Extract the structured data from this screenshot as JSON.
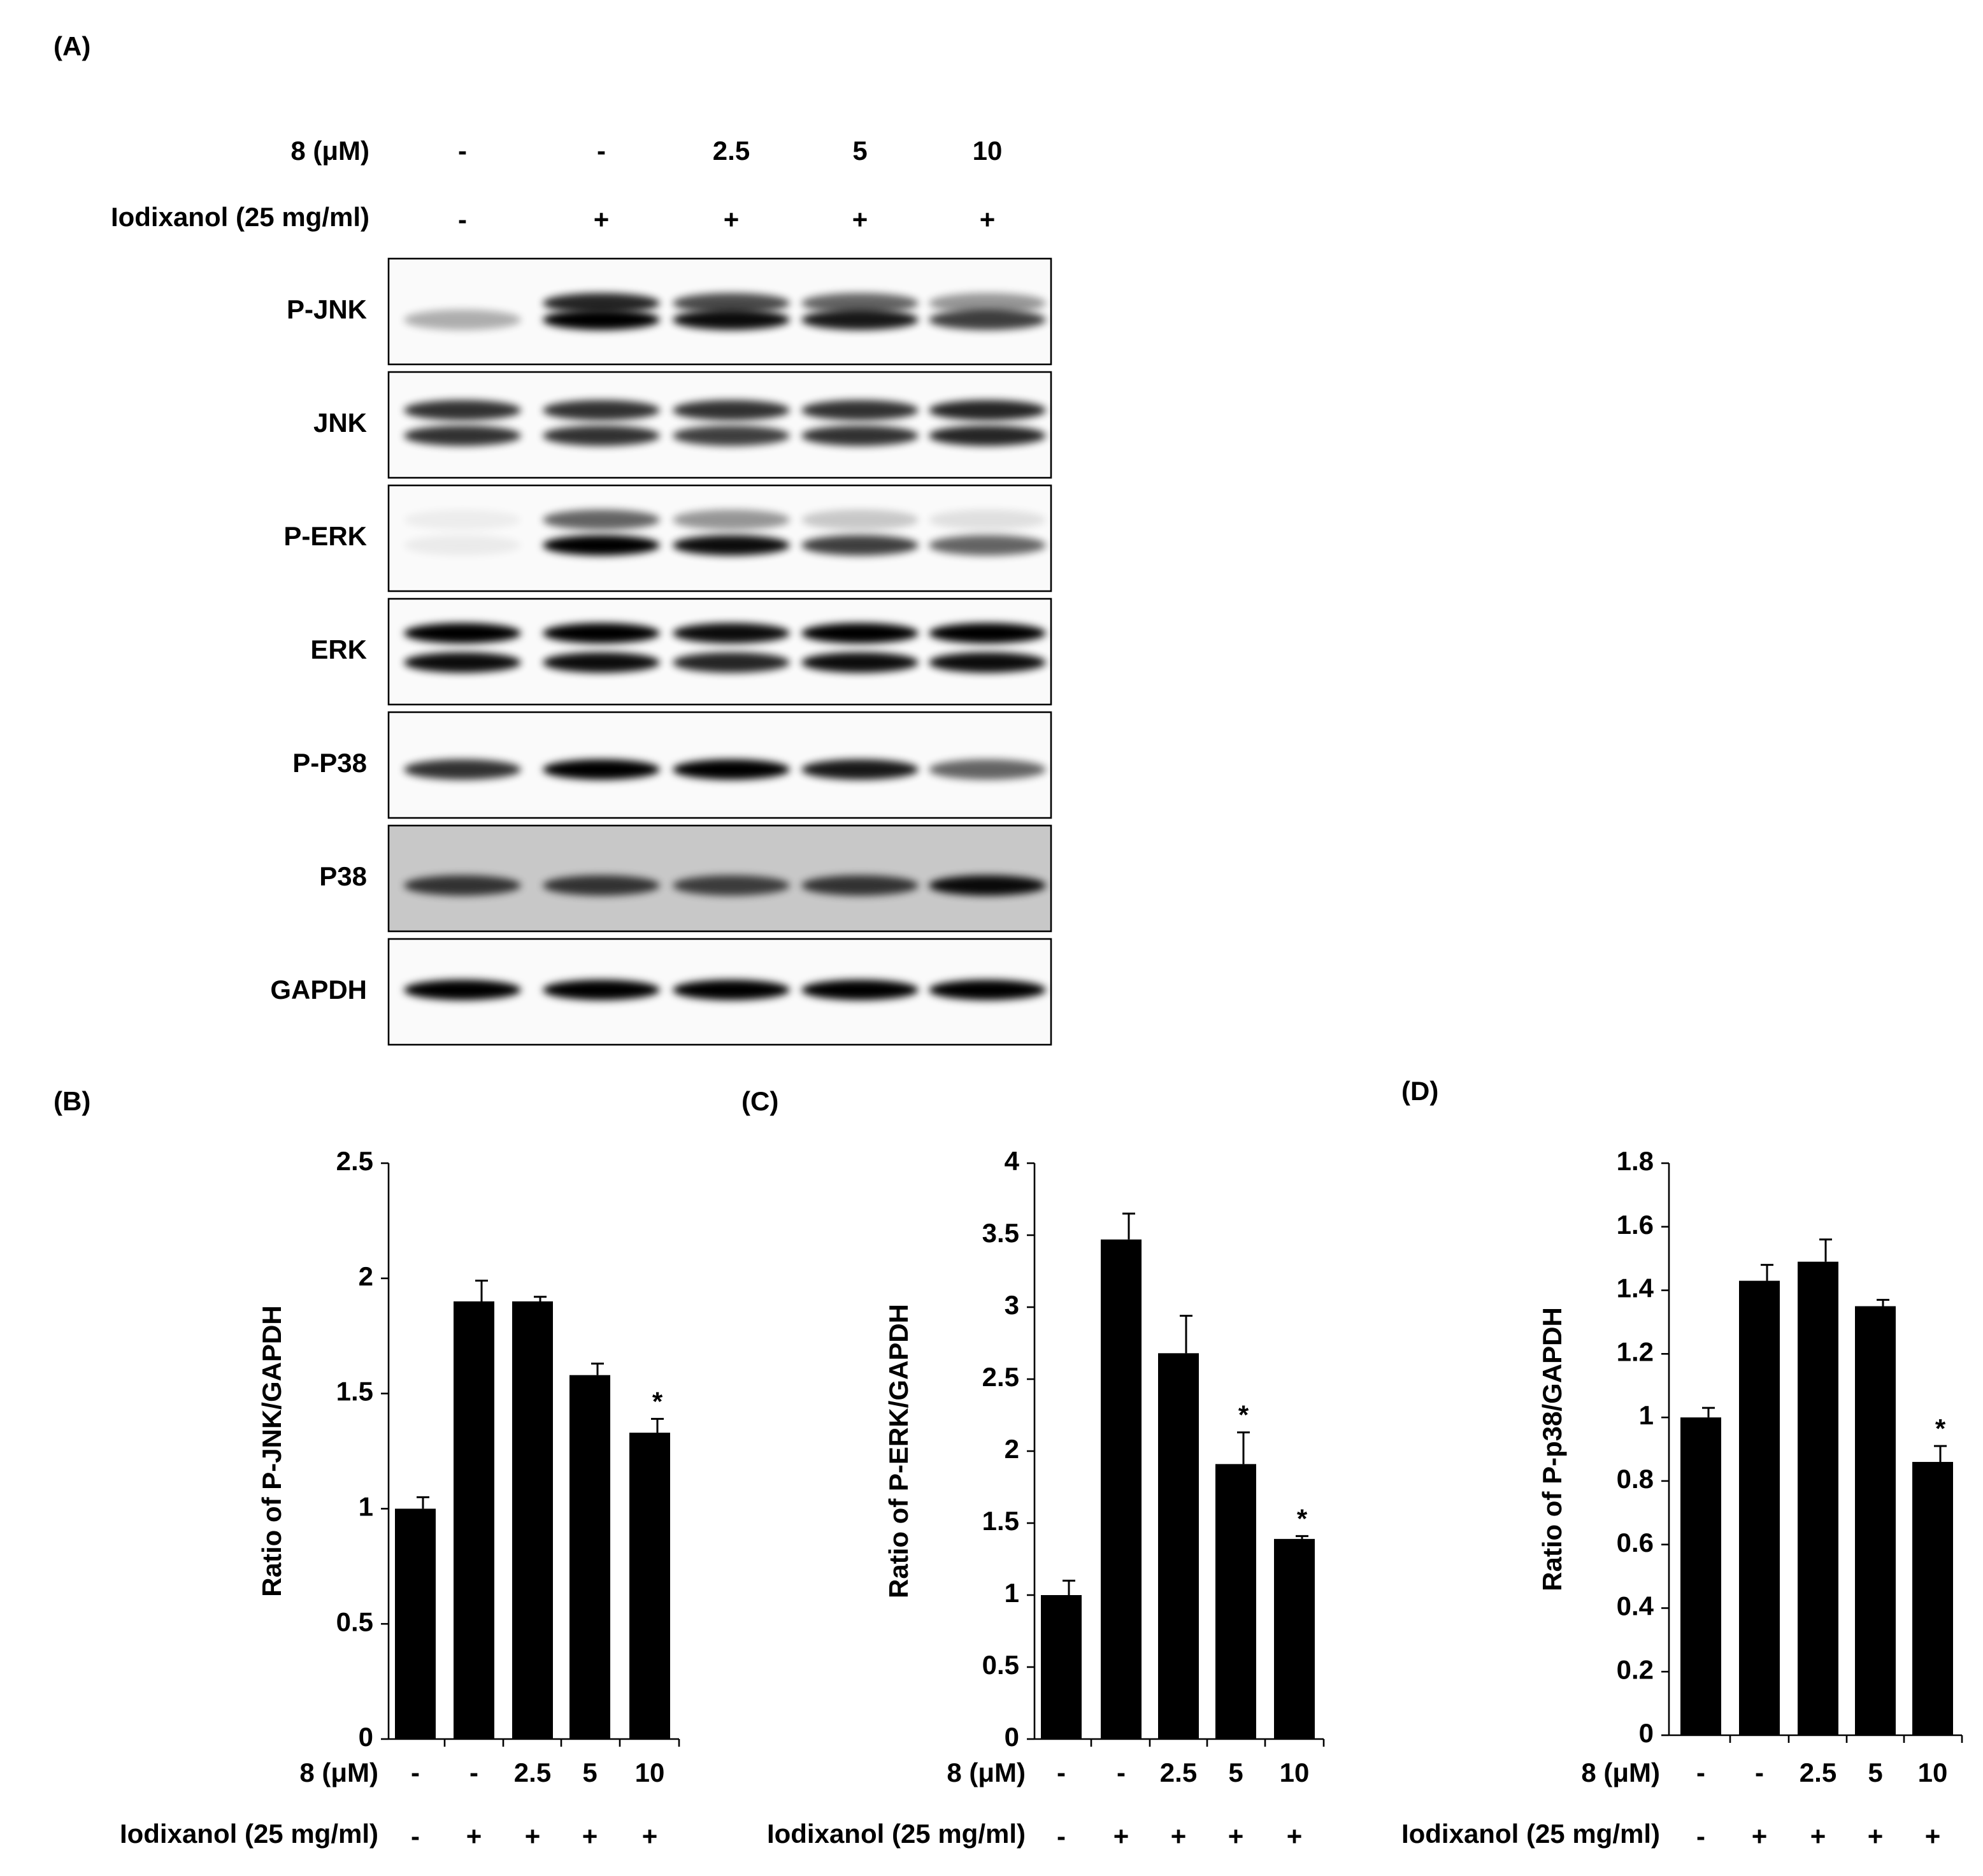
{
  "panels": [
    "(A)",
    "(B)",
    "(C)",
    "(D)"
  ],
  "blot": {
    "compound_label": "8 (μM)",
    "iodixanol_label": "Iodixanol (25 mg/ml)",
    "compound": [
      "-",
      "-",
      "2.5",
      "5",
      "10"
    ],
    "iodixanol": [
      "-",
      "+",
      "+",
      "+",
      "+"
    ],
    "rows": [
      "P-JNK",
      "JNK",
      "P-ERK",
      "ERK",
      "P-P38",
      "P38",
      "GAPDH"
    ]
  },
  "chart_data": [
    {
      "type": "bar",
      "y_label": "Ratio of P-JNK/GAPDH",
      "category_titles": [
        "8 (μM)",
        "Iodixanol (25 mg/ml)"
      ],
      "categories": [
        "-",
        "-",
        "2.5",
        "5",
        "10"
      ],
      "categories2": [
        "-",
        "+",
        "+",
        "+",
        "+"
      ],
      "values": [
        1.0,
        1.9,
        1.9,
        1.58,
        1.33
      ],
      "errors": [
        0.05,
        0.09,
        0.02,
        0.05,
        0.06
      ],
      "significance": [
        null,
        null,
        null,
        null,
        "*"
      ],
      "color": "#000000",
      "ylim": [
        0,
        2.5
      ],
      "yticks": [
        0,
        0.5,
        1,
        1.5,
        2,
        2.5
      ]
    },
    {
      "type": "bar",
      "y_label": "Ratio of P-ERK/GAPDH",
      "category_titles": [
        "8 (μM)",
        "Iodixanol (25 mg/ml)"
      ],
      "categories": [
        "-",
        "-",
        "2.5",
        "5",
        "10"
      ],
      "categories2": [
        "-",
        "+",
        "+",
        "+",
        "+"
      ],
      "values": [
        1.0,
        3.47,
        2.68,
        1.91,
        1.39
      ],
      "errors": [
        0.1,
        0.18,
        0.26,
        0.22,
        0.02
      ],
      "significance": [
        null,
        null,
        null,
        "*",
        "*"
      ],
      "color": "#000000",
      "ylim": [
        0,
        4
      ],
      "yticks": [
        0,
        0.5,
        1,
        1.5,
        2,
        2.5,
        3,
        3.5,
        4
      ]
    },
    {
      "type": "bar",
      "y_label": "Ratio of P-p38/GAPDH",
      "category_titles": [
        "8 (μM)",
        "Iodixanol (25 mg/ml)"
      ],
      "categories": [
        "-",
        "-",
        "2.5",
        "5",
        "10"
      ],
      "categories2": [
        "-",
        "+",
        "+",
        "+",
        "+"
      ],
      "values": [
        1.0,
        1.43,
        1.49,
        1.35,
        0.86
      ],
      "errors": [
        0.03,
        0.05,
        0.07,
        0.02,
        0.05
      ],
      "significance": [
        null,
        null,
        null,
        null,
        "*"
      ],
      "color": "#000000",
      "ylim": [
        0,
        1.8
      ],
      "yticks": [
        0,
        0.2,
        0.4,
        0.6,
        0.8,
        1,
        1.2,
        1.4,
        1.6,
        1.8
      ]
    }
  ]
}
